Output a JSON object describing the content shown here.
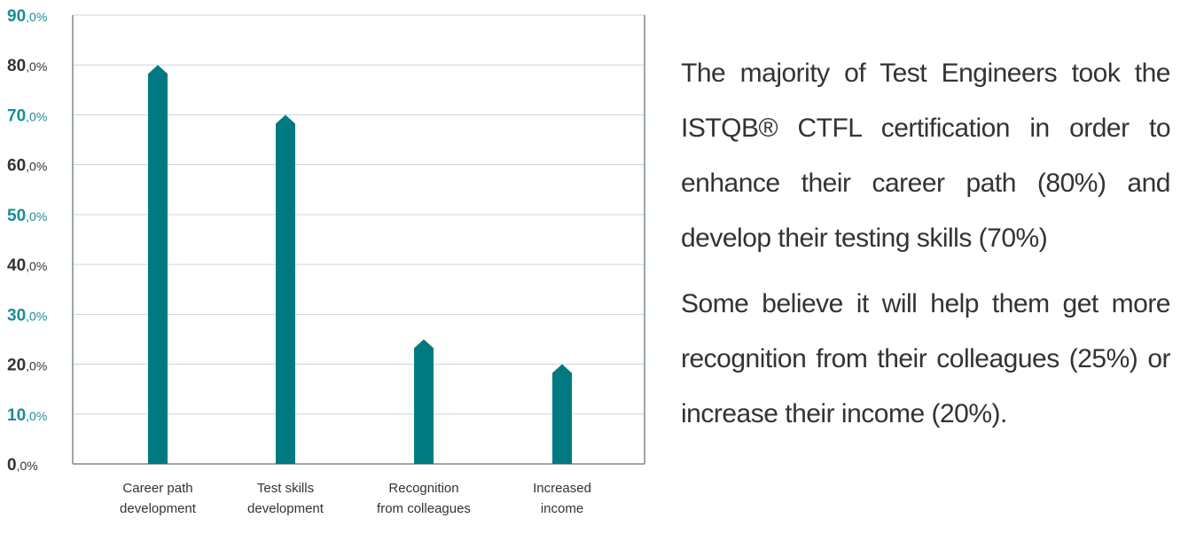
{
  "chart_data": {
    "type": "bar",
    "categories": [
      [
        "Career path",
        "development"
      ],
      [
        "Test skills",
        "development"
      ],
      [
        "Recognition",
        "from colleagues"
      ],
      [
        "Increased",
        "income"
      ]
    ],
    "values": [
      80,
      70,
      25,
      20
    ],
    "ylim": [
      0,
      90
    ],
    "yticks": [
      {
        "major": "0",
        "minor": ",0%"
      },
      {
        "major": "10",
        "minor": ",0%"
      },
      {
        "major": "20",
        "minor": ",0%"
      },
      {
        "major": "30",
        "minor": ",0%"
      },
      {
        "major": "40",
        "minor": ",0%"
      },
      {
        "major": "50",
        "minor": ",0%"
      },
      {
        "major": "60",
        "minor": ",0%"
      },
      {
        "major": "70",
        "minor": ",0%"
      },
      {
        "major": "80",
        "minor": ",0%"
      },
      {
        "major": "90",
        "minor": ",0%"
      }
    ],
    "grid": true,
    "bar_color": "#007a80",
    "tick_colors": [
      "#333333",
      "#1a8c96"
    ]
  },
  "summary": {
    "paragraph1": "The majority of Test Engineers took the ISTQB® CTFL certification in order to enhance their career path (80%) and develop their testing skills (70%)",
    "paragraph2": "Some believe it will help them get more recognition from their colleagues (25%) or increase their income (20%)."
  }
}
